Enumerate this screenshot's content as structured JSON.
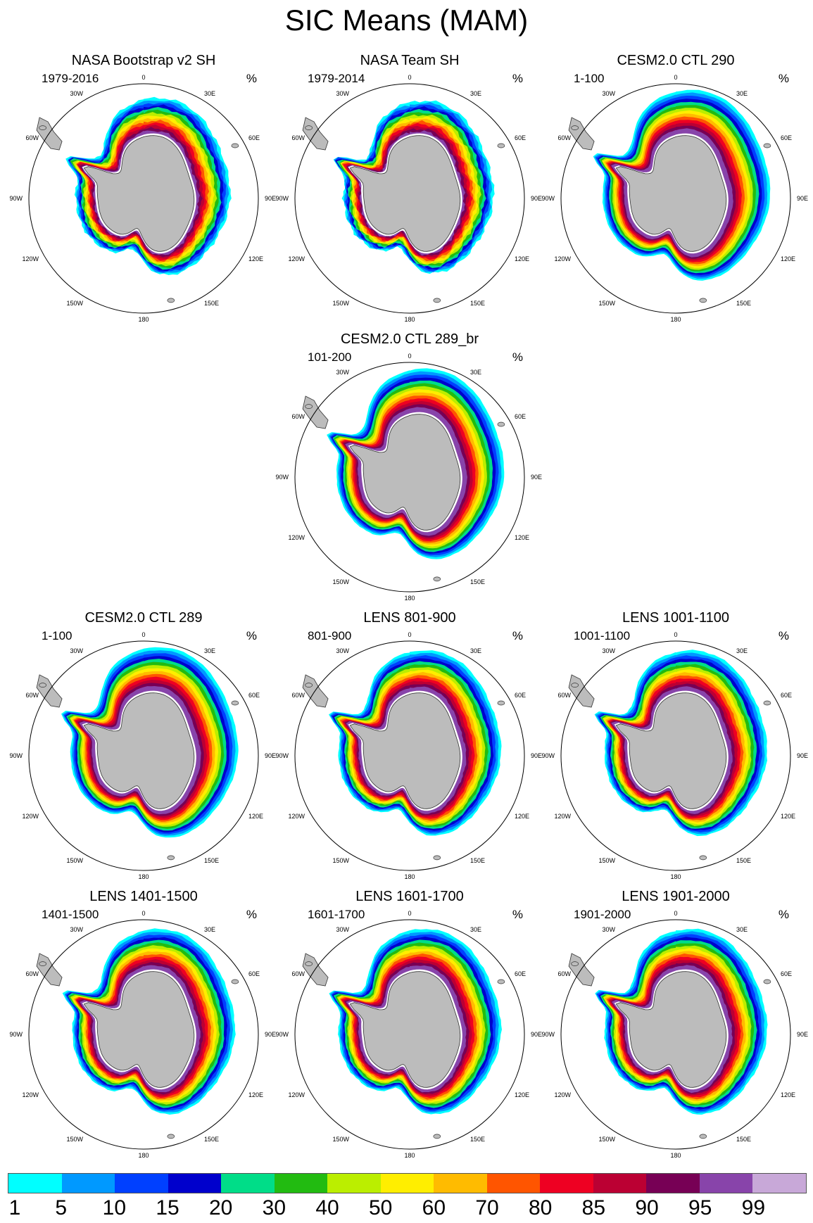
{
  "title": "SIC Means (MAM)",
  "unit": "%",
  "land_color": "#bcbcbc",
  "panels": [
    {
      "title": "NASA Bootstrap v2 SH",
      "period": "1979-2016",
      "style": "obs1"
    },
    {
      "title": "NASA Team SH",
      "period": "1979-2014",
      "style": "obs2"
    },
    {
      "title": "CESM2.0 CTL 290",
      "period": "1-100",
      "style": "model_wide"
    },
    {
      "title": "CESM2.0 CTL 289_br",
      "period": "101-200",
      "style": "model_wide"
    },
    {
      "title": "CESM2.0 CTL 289",
      "period": "1-100",
      "style": "model_wide"
    },
    {
      "title": "LENS 801-900",
      "period": "801-900",
      "style": "lens"
    },
    {
      "title": "LENS 1001-1100",
      "period": "1001-1100",
      "style": "lens"
    },
    {
      "title": "LENS 1401-1500",
      "period": "1401-1500",
      "style": "lens"
    },
    {
      "title": "LENS 1601-1700",
      "period": "1601-1700",
      "style": "lens"
    },
    {
      "title": "LENS 1901-2000",
      "period": "1901-2000",
      "style": "lens"
    }
  ],
  "longitude_labels": [
    "0",
    "30E",
    "60E",
    "90E",
    "120E",
    "150E",
    "180",
    "150W",
    "120W",
    "90W",
    "60W",
    "30W"
  ],
  "colorbar": {
    "labels": [
      "1",
      "5",
      "10",
      "15",
      "20",
      "30",
      "40",
      "50",
      "60",
      "70",
      "80",
      "85",
      "90",
      "95",
      "99"
    ],
    "colors": [
      "#00ffff",
      "#0099ff",
      "#0040ff",
      "#0000cc",
      "#00dd88",
      "#22bb11",
      "#bbee00",
      "#ffee00",
      "#ffbb00",
      "#ff5500",
      "#ee0022",
      "#bb0033",
      "#770055",
      "#8844aa",
      "#c8a8d8"
    ]
  }
}
